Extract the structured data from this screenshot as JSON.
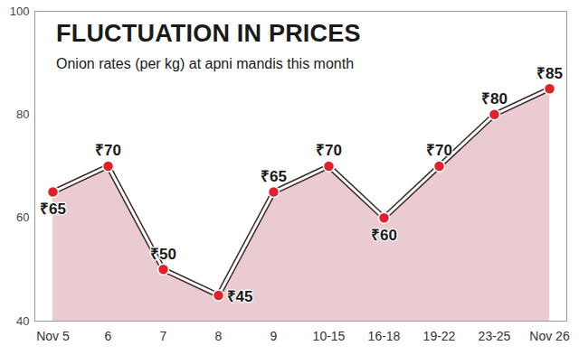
{
  "chart_data": {
    "type": "line",
    "title": "FLUCTUATION IN PRICES",
    "subtitle": "Onion rates (per kg) at apni mandis this month",
    "categories": [
      "Nov 5",
      "6",
      "7",
      "8",
      "9",
      "10-15",
      "16-18",
      "19-22",
      "23-25",
      "Nov 26"
    ],
    "values": [
      65,
      70,
      50,
      45,
      65,
      70,
      60,
      70,
      80,
      85
    ],
    "value_labels": [
      "₹65",
      "₹70",
      "₹50",
      "₹45",
      "₹65",
      "₹70",
      "₹60",
      "₹70",
      "₹80",
      "₹85"
    ],
    "data_labels": true,
    "color": "#e0202a",
    "marker": "circle",
    "ylim": [
      40,
      100
    ],
    "yticks": [
      40,
      60,
      80,
      100
    ],
    "grid": false
  }
}
